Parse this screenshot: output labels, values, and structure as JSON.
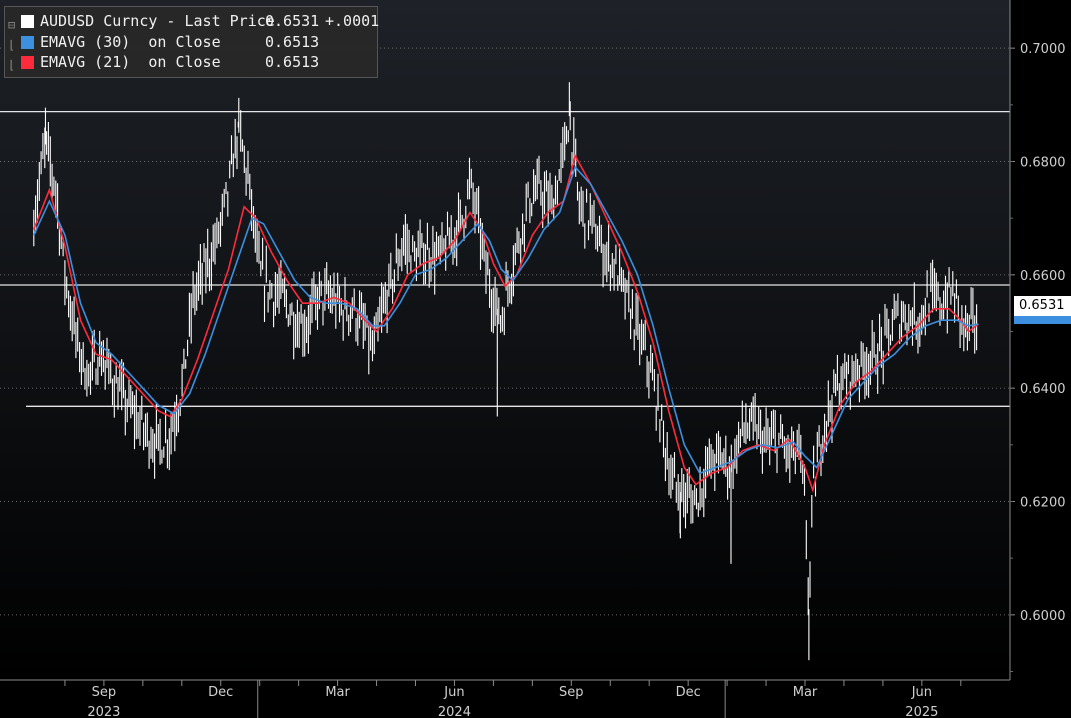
{
  "chart_data": {
    "type": "line",
    "title": "AUDUSD Curncy",
    "ylim": [
      0.5885,
      0.7085
    ],
    "y_ticks": [
      0.7,
      0.68,
      0.66,
      0.64,
      0.62,
      0.6
    ],
    "y_tick_labels": [
      "0.7000",
      "0.6800",
      "0.6600",
      "0.6400",
      "0.6200",
      "0.6000"
    ],
    "month_ticks": [
      {
        "month": 1,
        "label": ""
      },
      {
        "month": 2,
        "label": "Sep"
      },
      {
        "month": 3,
        "label": ""
      },
      {
        "month": 4,
        "label": ""
      },
      {
        "month": 5,
        "label": "Dec"
      },
      {
        "month": 6,
        "label": ""
      },
      {
        "month": 7,
        "label": ""
      },
      {
        "month": 8,
        "label": "Mar"
      },
      {
        "month": 9,
        "label": ""
      },
      {
        "month": 10,
        "label": ""
      },
      {
        "month": 11,
        "label": "Jun"
      },
      {
        "month": 12,
        "label": ""
      },
      {
        "month": 13,
        "label": ""
      },
      {
        "month": 14,
        "label": "Sep"
      },
      {
        "month": 15,
        "label": ""
      },
      {
        "month": 16,
        "label": ""
      },
      {
        "month": 17,
        "label": "Dec"
      },
      {
        "month": 18,
        "label": ""
      },
      {
        "month": 19,
        "label": ""
      },
      {
        "month": 20,
        "label": "Mar"
      },
      {
        "month": 21,
        "label": ""
      },
      {
        "month": 22,
        "label": ""
      },
      {
        "month": 23,
        "label": "Jun"
      },
      {
        "month": 24,
        "label": ""
      }
    ],
    "year_labels": [
      {
        "label": "2023",
        "month": 2
      },
      {
        "label": "2024",
        "month": 11
      },
      {
        "label": "2025",
        "month": 23
      }
    ],
    "year_dividers": [
      5.95,
      17.95
    ],
    "x_range": [
      0.2,
      24.0
    ],
    "hlines": [
      0.6888,
      0.6582,
      0.6368
    ],
    "series": [
      {
        "name": "AUDUSD Curncy - Last Price",
        "color": "#ffffff",
        "points": [
          [
            0.2,
            0.67
          ],
          [
            0.5,
            0.683
          ],
          [
            0.75,
            0.676
          ],
          [
            1.0,
            0.66
          ],
          [
            1.3,
            0.648
          ],
          [
            1.6,
            0.642
          ],
          [
            1.9,
            0.646
          ],
          [
            2.2,
            0.642
          ],
          [
            2.5,
            0.638
          ],
          [
            2.8,
            0.635
          ],
          [
            3.1,
            0.632
          ],
          [
            3.4,
            0.63
          ],
          [
            3.7,
            0.632
          ],
          [
            4.0,
            0.64
          ],
          [
            4.3,
            0.656
          ],
          [
            4.6,
            0.661
          ],
          [
            4.9,
            0.666
          ],
          [
            5.2,
            0.675
          ],
          [
            5.45,
            0.686
          ],
          [
            5.7,
            0.677
          ],
          [
            6.0,
            0.66
          ],
          [
            6.3,
            0.657
          ],
          [
            6.6,
            0.656
          ],
          [
            6.9,
            0.652
          ],
          [
            7.2,
            0.651
          ],
          [
            7.5,
            0.656
          ],
          [
            7.8,
            0.656
          ],
          [
            8.1,
            0.654
          ],
          [
            8.4,
            0.654
          ],
          [
            8.7,
            0.65
          ],
          [
            8.9,
            0.646
          ],
          [
            9.1,
            0.652
          ],
          [
            9.4,
            0.659
          ],
          [
            9.7,
            0.666
          ],
          [
            10.0,
            0.663
          ],
          [
            10.3,
            0.664
          ],
          [
            10.6,
            0.663
          ],
          [
            10.9,
            0.666
          ],
          [
            11.2,
            0.67
          ],
          [
            11.4,
            0.676
          ],
          [
            11.6,
            0.67
          ],
          [
            11.8,
            0.661
          ],
          [
            12.0,
            0.656
          ],
          [
            12.2,
            0.652
          ],
          [
            12.4,
            0.659
          ],
          [
            12.6,
            0.665
          ],
          [
            12.9,
            0.673
          ],
          [
            13.2,
            0.675
          ],
          [
            13.5,
            0.672
          ],
          [
            13.75,
            0.679
          ],
          [
            13.95,
            0.688
          ],
          [
            14.2,
            0.672
          ],
          [
            14.5,
            0.67
          ],
          [
            14.8,
            0.664
          ],
          [
            15.1,
            0.662
          ],
          [
            15.4,
            0.656
          ],
          [
            15.7,
            0.65
          ],
          [
            16.0,
            0.644
          ],
          [
            16.3,
            0.634
          ],
          [
            16.6,
            0.623
          ],
          [
            16.9,
            0.621
          ],
          [
            17.2,
            0.62
          ],
          [
            17.5,
            0.626
          ],
          [
            17.8,
            0.628
          ],
          [
            18.1,
            0.626
          ],
          [
            18.4,
            0.633
          ],
          [
            18.7,
            0.633
          ],
          [
            19.0,
            0.63
          ],
          [
            19.3,
            0.631
          ],
          [
            19.6,
            0.628
          ],
          [
            19.85,
            0.629
          ],
          [
            20.0,
            0.62
          ],
          [
            20.1,
            0.601
          ],
          [
            20.2,
            0.622
          ],
          [
            20.5,
            0.634
          ],
          [
            20.8,
            0.64
          ],
          [
            21.1,
            0.642
          ],
          [
            21.4,
            0.644
          ],
          [
            21.7,
            0.645
          ],
          [
            22.0,
            0.647
          ],
          [
            22.3,
            0.652
          ],
          [
            22.6,
            0.653
          ],
          [
            22.9,
            0.652
          ],
          [
            23.2,
            0.656
          ],
          [
            23.5,
            0.655
          ],
          [
            23.8,
            0.657
          ],
          [
            24.0,
            0.652
          ],
          [
            24.2,
            0.65
          ],
          [
            24.45,
            0.6531
          ]
        ]
      },
      {
        "name": "EMAVG (21) on Close",
        "color": "#ff2a3c",
        "points": [
          [
            0.2,
            0.668
          ],
          [
            0.6,
            0.675
          ],
          [
            1.0,
            0.665
          ],
          [
            1.4,
            0.652
          ],
          [
            1.8,
            0.646
          ],
          [
            2.2,
            0.645
          ],
          [
            2.6,
            0.642
          ],
          [
            3.0,
            0.639
          ],
          [
            3.4,
            0.636
          ],
          [
            3.7,
            0.635
          ],
          [
            4.0,
            0.638
          ],
          [
            4.4,
            0.645
          ],
          [
            4.8,
            0.653
          ],
          [
            5.2,
            0.661
          ],
          [
            5.6,
            0.672
          ],
          [
            5.9,
            0.67
          ],
          [
            6.3,
            0.664
          ],
          [
            6.7,
            0.659
          ],
          [
            7.1,
            0.655
          ],
          [
            7.5,
            0.655
          ],
          [
            7.9,
            0.656
          ],
          [
            8.3,
            0.655
          ],
          [
            8.7,
            0.652
          ],
          [
            9.0,
            0.65
          ],
          [
            9.4,
            0.654
          ],
          [
            9.8,
            0.66
          ],
          [
            10.2,
            0.662
          ],
          [
            10.6,
            0.663
          ],
          [
            11.0,
            0.666
          ],
          [
            11.4,
            0.671
          ],
          [
            11.7,
            0.668
          ],
          [
            12.0,
            0.662
          ],
          [
            12.3,
            0.658
          ],
          [
            12.6,
            0.66
          ],
          [
            13.0,
            0.667
          ],
          [
            13.4,
            0.671
          ],
          [
            13.8,
            0.673
          ],
          [
            14.1,
            0.681
          ],
          [
            14.5,
            0.676
          ],
          [
            14.9,
            0.67
          ],
          [
            15.3,
            0.664
          ],
          [
            15.7,
            0.657
          ],
          [
            16.1,
            0.648
          ],
          [
            16.5,
            0.636
          ],
          [
            16.9,
            0.626
          ],
          [
            17.2,
            0.623
          ],
          [
            17.6,
            0.625
          ],
          [
            18.0,
            0.626
          ],
          [
            18.4,
            0.629
          ],
          [
            18.8,
            0.63
          ],
          [
            19.2,
            0.629
          ],
          [
            19.6,
            0.631
          ],
          [
            20.0,
            0.626
          ],
          [
            20.2,
            0.622
          ],
          [
            20.5,
            0.63
          ],
          [
            20.9,
            0.637
          ],
          [
            21.3,
            0.641
          ],
          [
            21.7,
            0.643
          ],
          [
            22.1,
            0.646
          ],
          [
            22.5,
            0.649
          ],
          [
            22.9,
            0.651
          ],
          [
            23.3,
            0.654
          ],
          [
            23.7,
            0.654
          ],
          [
            24.0,
            0.652
          ],
          [
            24.2,
            0.65
          ],
          [
            24.45,
            0.6513
          ]
        ]
      },
      {
        "name": "EMAVG (30) on Close",
        "color": "#3d8fe0",
        "points": [
          [
            0.2,
            0.667
          ],
          [
            0.6,
            0.673
          ],
          [
            1.0,
            0.667
          ],
          [
            1.4,
            0.655
          ],
          [
            1.8,
            0.648
          ],
          [
            2.2,
            0.646
          ],
          [
            2.6,
            0.643
          ],
          [
            3.0,
            0.64
          ],
          [
            3.4,
            0.637
          ],
          [
            3.8,
            0.6355
          ],
          [
            4.2,
            0.639
          ],
          [
            4.6,
            0.646
          ],
          [
            5.0,
            0.654
          ],
          [
            5.4,
            0.662
          ],
          [
            5.8,
            0.67
          ],
          [
            6.1,
            0.669
          ],
          [
            6.5,
            0.664
          ],
          [
            6.9,
            0.659
          ],
          [
            7.3,
            0.656
          ],
          [
            7.7,
            0.655
          ],
          [
            8.1,
            0.655
          ],
          [
            8.5,
            0.654
          ],
          [
            8.9,
            0.651
          ],
          [
            9.2,
            0.651
          ],
          [
            9.6,
            0.655
          ],
          [
            10.0,
            0.66
          ],
          [
            10.4,
            0.661
          ],
          [
            10.8,
            0.663
          ],
          [
            11.2,
            0.666
          ],
          [
            11.6,
            0.669
          ],
          [
            11.9,
            0.666
          ],
          [
            12.2,
            0.661
          ],
          [
            12.5,
            0.659
          ],
          [
            12.9,
            0.663
          ],
          [
            13.3,
            0.668
          ],
          [
            13.7,
            0.671
          ],
          [
            14.1,
            0.679
          ],
          [
            14.5,
            0.676
          ],
          [
            14.9,
            0.671
          ],
          [
            15.3,
            0.666
          ],
          [
            15.7,
            0.66
          ],
          [
            16.1,
            0.651
          ],
          [
            16.5,
            0.64
          ],
          [
            16.9,
            0.63
          ],
          [
            17.3,
            0.625
          ],
          [
            17.7,
            0.626
          ],
          [
            18.1,
            0.627
          ],
          [
            18.5,
            0.629
          ],
          [
            18.9,
            0.63
          ],
          [
            19.3,
            0.6295
          ],
          [
            19.7,
            0.6305
          ],
          [
            20.0,
            0.628
          ],
          [
            20.3,
            0.626
          ],
          [
            20.7,
            0.632
          ],
          [
            21.1,
            0.638
          ],
          [
            21.5,
            0.641
          ],
          [
            21.9,
            0.644
          ],
          [
            22.3,
            0.646
          ],
          [
            22.7,
            0.649
          ],
          [
            23.1,
            0.651
          ],
          [
            23.5,
            0.652
          ],
          [
            23.9,
            0.652
          ],
          [
            24.2,
            0.651
          ],
          [
            24.45,
            0.6513
          ]
        ]
      }
    ],
    "legend": [
      {
        "label": "AUDUSD Curncy - Last Price",
        "value": "0.6531",
        "change": "+.0001",
        "color": "#ffffff"
      },
      {
        "label": "EMAVG (30)  on Close",
        "value": "0.6513",
        "change": "",
        "color": "#3d8fe0"
      },
      {
        "label": "EMAVG (21)  on Close",
        "value": "0.6513",
        "change": "",
        "color": "#ff2a3c"
      }
    ],
    "last_price_label": "0.6531",
    "last_price_value": 0.6531
  }
}
